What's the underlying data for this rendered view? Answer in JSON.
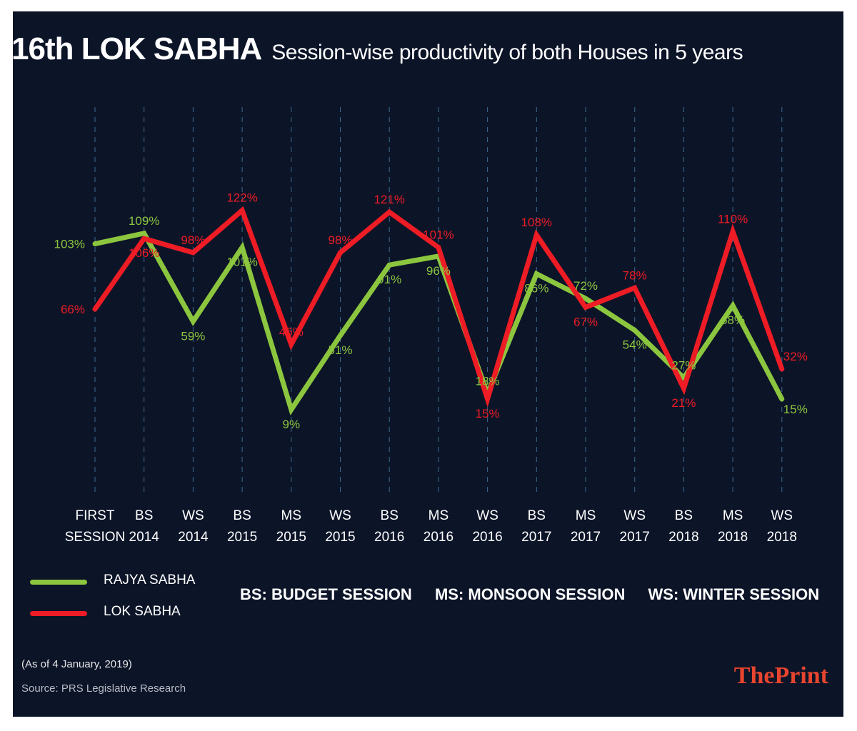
{
  "header": {
    "title": "16th LOK SABHA",
    "subtitle": "Session-wise productivity of both Houses in 5 years"
  },
  "chart_data": {
    "type": "line",
    "categories": [
      [
        "FIRST",
        "SESSION"
      ],
      [
        "BS",
        "2014"
      ],
      [
        "WS",
        "2014"
      ],
      [
        "BS",
        "2015"
      ],
      [
        "MS",
        "2015"
      ],
      [
        "WS",
        "2015"
      ],
      [
        "BS",
        "2016"
      ],
      [
        "MS",
        "2016"
      ],
      [
        "WS",
        "2016"
      ],
      [
        "BS",
        "2017"
      ],
      [
        "MS",
        "2017"
      ],
      [
        "WS",
        "2017"
      ],
      [
        "BS",
        "2018"
      ],
      [
        "MS",
        "2018"
      ],
      [
        "WS",
        "2018"
      ]
    ],
    "series": [
      {
        "name": "RAJYA SABHA",
        "color": "#8cc63f",
        "values": [
          103,
          109,
          59,
          101,
          9,
          51,
          91,
          96,
          18,
          86,
          72,
          54,
          27,
          68,
          15
        ]
      },
      {
        "name": "LOK SABHA",
        "color": "#ee1c25",
        "values": [
          66,
          106,
          98,
          122,
          46,
          98,
          121,
          101,
          15,
          108,
          67,
          78,
          21,
          110,
          32
        ]
      }
    ],
    "value_suffix": "%",
    "ylim": [
      0,
      130
    ],
    "grid": "vertical-dashed"
  },
  "legend": {
    "items": [
      {
        "label": "RAJYA SABHA",
        "color": "#8cc63f"
      },
      {
        "label": "LOK SABHA",
        "color": "#ee1c25"
      }
    ]
  },
  "abbreviations": [
    "BS: BUDGET SESSION",
    "MS: MONSOON SESSION",
    "WS: WINTER SESSION"
  ],
  "footer": {
    "note": "(As of 4 January, 2019)",
    "source": "Source: PRS Legislative Research",
    "brand": "ThePrint"
  }
}
